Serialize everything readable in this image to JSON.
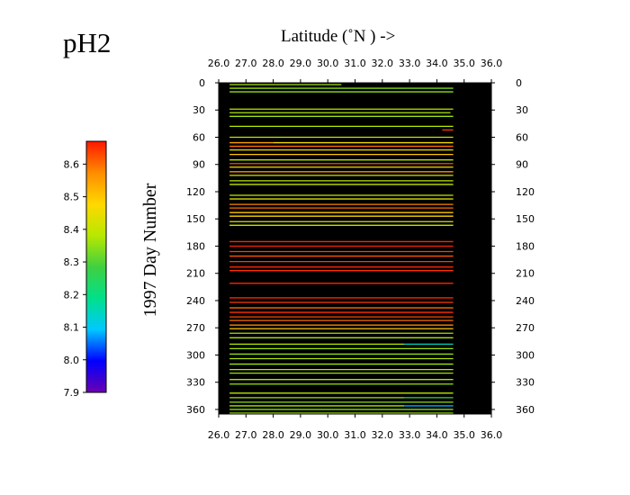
{
  "title": "pH2",
  "top_axis_label": "Latitude  (˚N )  ->",
  "left_axis_label": "1997   Day  Number",
  "colorbar": {
    "min": 7.9,
    "max": 8.67,
    "ticks": [
      "7.9",
      "8.0",
      "8.1",
      "8.2",
      "8.3",
      "8.4",
      "8.5",
      "8.6"
    ],
    "stops": [
      "#6a00b0",
      "#0000ff",
      "#00c8ff",
      "#00e08a",
      "#40d040",
      "#b8e800",
      "#ffd800",
      "#ff8c00",
      "#ff1800"
    ]
  },
  "chart_data": {
    "type": "heatmap",
    "title": "pH2",
    "xlabel": "Latitude  (˚N )  ->",
    "ylabel": "1997   Day  Number",
    "xlim": [
      26.0,
      36.0
    ],
    "ylim": [
      0,
      365
    ],
    "x_ticks": [
      "26.0",
      "27.0",
      "28.0",
      "29.0",
      "30.0",
      "31.0",
      "32.0",
      "33.0",
      "34.0",
      "35.0",
      "36.0"
    ],
    "y_ticks": [
      "0",
      "30",
      "60",
      "90",
      "120",
      "150",
      "180",
      "210",
      "240",
      "270",
      "300",
      "330",
      "360"
    ],
    "background": "#000000",
    "transects": [
      {
        "day": 2,
        "segments": [
          [
            26.4,
            28.1,
            8.37
          ],
          [
            28.1,
            30.5,
            8.36
          ]
        ]
      },
      {
        "day": 6,
        "segments": [
          [
            26.4,
            28.0,
            8.36
          ],
          [
            28.0,
            32.8,
            8.34
          ],
          [
            32.8,
            34.6,
            8.33
          ]
        ]
      },
      {
        "day": 10,
        "segments": [
          [
            26.4,
            34.6,
            8.35
          ]
        ]
      },
      {
        "day": 29,
        "segments": [
          [
            26.4,
            34.6,
            8.38
          ]
        ]
      },
      {
        "day": 33,
        "segments": [
          [
            26.4,
            34.5,
            8.37
          ]
        ]
      },
      {
        "day": 37,
        "segments": [
          [
            26.4,
            34.6,
            8.36
          ]
        ]
      },
      {
        "day": 48,
        "segments": [
          [
            26.4,
            34.6,
            8.38
          ]
        ]
      },
      {
        "day": 52,
        "segments": [
          [
            34.2,
            34.6,
            8.64
          ]
        ]
      },
      {
        "day": 60,
        "segments": [
          [
            26.4,
            34.6,
            8.4
          ]
        ]
      },
      {
        "day": 66,
        "segments": [
          [
            26.4,
            28.0,
            8.55
          ],
          [
            28.0,
            34.6,
            8.47
          ]
        ]
      },
      {
        "day": 70,
        "segments": [
          [
            26.4,
            34.6,
            8.6
          ]
        ]
      },
      {
        "day": 74,
        "segments": [
          [
            26.4,
            34.6,
            8.45
          ]
        ]
      },
      {
        "day": 79,
        "segments": [
          [
            26.4,
            34.6,
            8.5
          ]
        ]
      },
      {
        "day": 85,
        "segments": [
          [
            26.4,
            34.6,
            8.38
          ]
        ]
      },
      {
        "day": 89,
        "segments": [
          [
            26.4,
            34.6,
            8.63
          ]
        ]
      },
      {
        "day": 93,
        "segments": [
          [
            26.4,
            34.6,
            8.47
          ]
        ]
      },
      {
        "day": 98,
        "segments": [
          [
            26.4,
            34.6,
            8.57
          ]
        ]
      },
      {
        "day": 102,
        "segments": [
          [
            26.4,
            34.6,
            8.42
          ]
        ]
      },
      {
        "day": 108,
        "segments": [
          [
            26.4,
            34.6,
            8.38
          ]
        ]
      },
      {
        "day": 112,
        "segments": [
          [
            26.4,
            34.6,
            8.4
          ]
        ]
      },
      {
        "day": 124,
        "segments": [
          [
            26.4,
            34.6,
            8.39
          ]
        ]
      },
      {
        "day": 128,
        "segments": [
          [
            26.4,
            34.6,
            8.42
          ]
        ]
      },
      {
        "day": 134,
        "segments": [
          [
            26.4,
            34.6,
            8.58
          ]
        ]
      },
      {
        "day": 138,
        "segments": [
          [
            26.4,
            34.6,
            8.6
          ]
        ]
      },
      {
        "day": 143,
        "segments": [
          [
            26.4,
            34.6,
            8.5
          ]
        ]
      },
      {
        "day": 147,
        "segments": [
          [
            26.4,
            34.6,
            8.48
          ]
        ]
      },
      {
        "day": 153,
        "segments": [
          [
            26.4,
            34.6,
            8.43
          ]
        ]
      },
      {
        "day": 157,
        "segments": [
          [
            26.4,
            34.6,
            8.4
          ]
        ]
      },
      {
        "day": 175,
        "segments": [
          [
            26.4,
            34.6,
            8.66
          ]
        ]
      },
      {
        "day": 180,
        "segments": [
          [
            26.4,
            34.6,
            8.66
          ]
        ]
      },
      {
        "day": 186,
        "segments": [
          [
            26.4,
            34.6,
            8.64
          ]
        ]
      },
      {
        "day": 191,
        "segments": [
          [
            26.4,
            34.6,
            8.62
          ]
        ]
      },
      {
        "day": 197,
        "segments": [
          [
            26.4,
            34.6,
            8.64
          ]
        ]
      },
      {
        "day": 203,
        "segments": [
          [
            26.4,
            34.6,
            8.66
          ]
        ]
      },
      {
        "day": 207,
        "segments": [
          [
            26.4,
            34.6,
            8.65
          ]
        ]
      },
      {
        "day": 221,
        "segments": [
          [
            26.4,
            34.6,
            8.66
          ]
        ]
      },
      {
        "day": 237,
        "segments": [
          [
            26.4,
            34.6,
            8.66
          ]
        ]
      },
      {
        "day": 242,
        "segments": [
          [
            26.4,
            34.6,
            8.64
          ]
        ]
      },
      {
        "day": 248,
        "segments": [
          [
            26.4,
            34.6,
            8.6
          ]
        ]
      },
      {
        "day": 253,
        "segments": [
          [
            26.4,
            34.6,
            8.65
          ]
        ]
      },
      {
        "day": 258,
        "segments": [
          [
            26.4,
            34.6,
            8.63
          ]
        ]
      },
      {
        "day": 262,
        "segments": [
          [
            26.4,
            34.6,
            8.6
          ]
        ]
      },
      {
        "day": 267,
        "segments": [
          [
            26.4,
            34.6,
            8.58
          ]
        ]
      },
      {
        "day": 271,
        "segments": [
          [
            26.4,
            34.6,
            8.5
          ]
        ]
      },
      {
        "day": 276,
        "segments": [
          [
            26.4,
            34.6,
            8.36
          ]
        ]
      },
      {
        "day": 281,
        "segments": [
          [
            26.4,
            34.6,
            8.37
          ]
        ]
      },
      {
        "day": 288,
        "segments": [
          [
            26.4,
            32.8,
            8.38
          ],
          [
            32.8,
            34.6,
            8.15
          ]
        ]
      },
      {
        "day": 293,
        "segments": [
          [
            26.4,
            34.6,
            8.36
          ]
        ]
      },
      {
        "day": 299,
        "segments": [
          [
            26.4,
            34.6,
            8.35
          ]
        ]
      },
      {
        "day": 304,
        "segments": [
          [
            26.4,
            34.6,
            8.37
          ]
        ]
      },
      {
        "day": 310,
        "segments": [
          [
            26.4,
            34.6,
            8.36
          ]
        ]
      },
      {
        "day": 316,
        "segments": [
          [
            26.4,
            34.6,
            8.38
          ]
        ]
      },
      {
        "day": 320,
        "segments": [
          [
            26.4,
            34.6,
            8.35
          ]
        ]
      },
      {
        "day": 327,
        "segments": [
          [
            26.4,
            34.6,
            8.37
          ]
        ]
      },
      {
        "day": 332,
        "segments": [
          [
            26.4,
            34.6,
            8.36
          ]
        ]
      },
      {
        "day": 342,
        "segments": [
          [
            26.4,
            34.6,
            8.38
          ]
        ]
      },
      {
        "day": 347,
        "segments": [
          [
            26.4,
            32.8,
            8.36
          ],
          [
            32.8,
            34.6,
            8.28
          ]
        ]
      },
      {
        "day": 352,
        "segments": [
          [
            26.4,
            34.6,
            8.35
          ]
        ]
      },
      {
        "day": 356,
        "segments": [
          [
            26.4,
            32.8,
            8.37
          ],
          [
            32.8,
            34.6,
            8.08
          ]
        ]
      },
      {
        "day": 360,
        "segments": [
          [
            26.4,
            34.6,
            8.34
          ]
        ]
      },
      {
        "day": 364,
        "segments": [
          [
            26.4,
            34.6,
            8.36
          ]
        ]
      }
    ]
  }
}
